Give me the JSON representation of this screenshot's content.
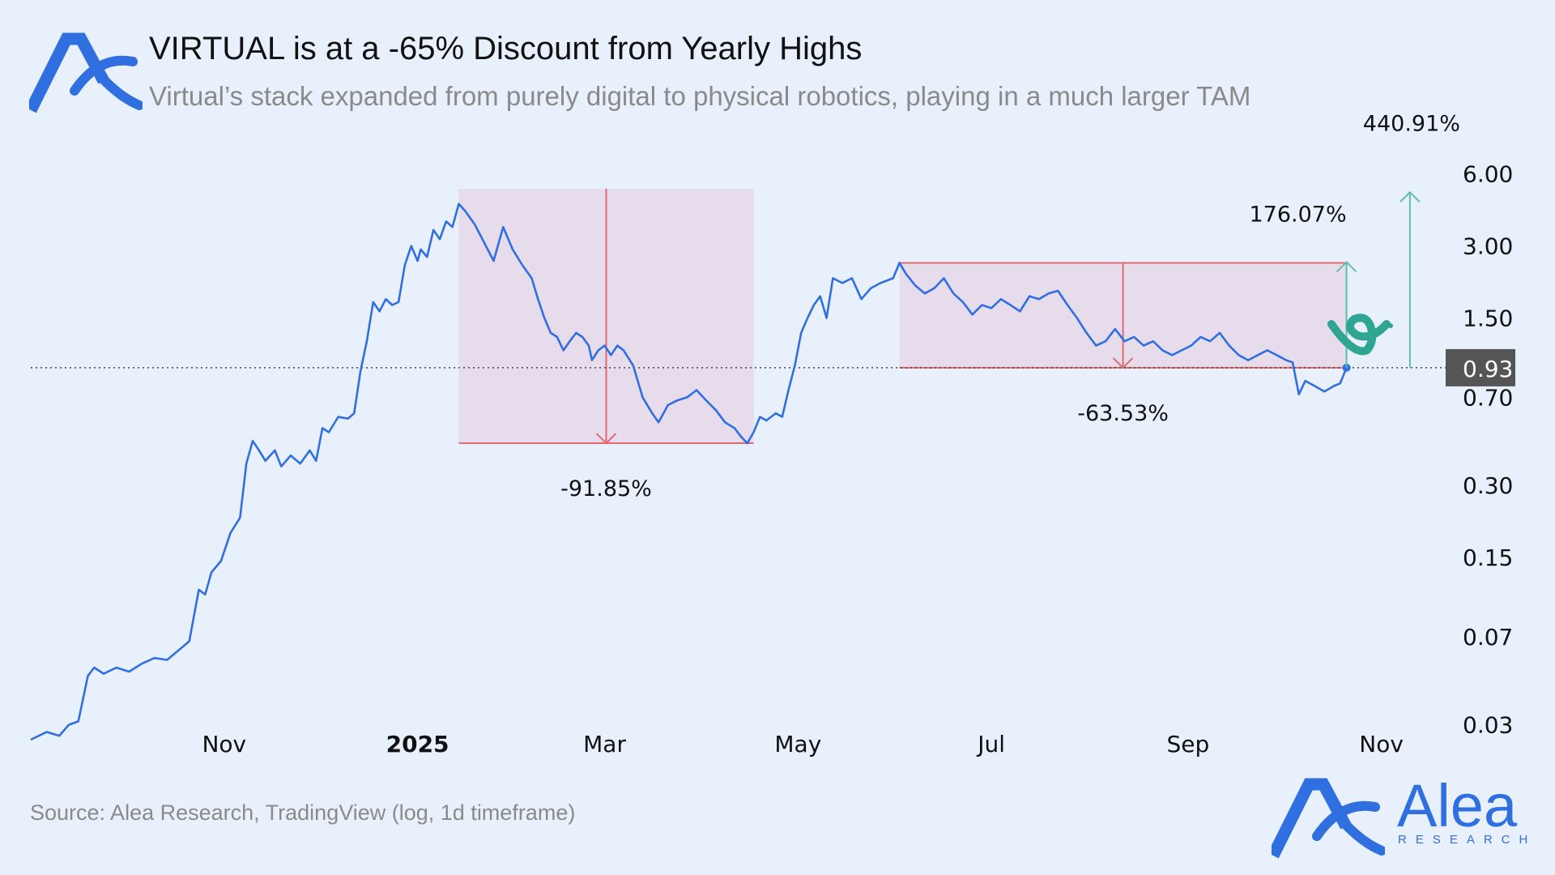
{
  "header": {
    "title": "VIRTUAL is at a -65% Discount from Yearly Highs",
    "subtitle": "Virtual’s stack expanded from purely digital to physical robotics, playing in a much larger TAM"
  },
  "footer": {
    "source": "Source: Alea Research, TradingView (log, 1d timeframe)",
    "brand_name": "Alea",
    "brand_sub": "RESEARCH"
  },
  "colors": {
    "background": "#e8f0fc",
    "line": "#2f6fe0",
    "range_fill": "#e6d9ea",
    "range_stroke": "#e06a72",
    "up_arrow": "#5fbfa6",
    "price_badge": "#555555",
    "brand": "#2f6fe0"
  },
  "chart_data": {
    "type": "line",
    "scale": "log",
    "ylim": [
      0.025,
      7.5
    ],
    "xlim": [
      "2024-09-01",
      "2025-11-20"
    ],
    "yticks": [
      6.0,
      3.0,
      1.5,
      0.7,
      0.3,
      0.15,
      0.07,
      0.03
    ],
    "ytick_labels": [
      "6.00",
      "3.00",
      "1.50",
      "0.70",
      "0.30",
      "0.15",
      "0.07",
      "0.03"
    ],
    "xticks": [
      {
        "date": "2024-11-01",
        "label": "Nov",
        "bold": false
      },
      {
        "date": "2025-01-01",
        "label": "2025",
        "bold": true
      },
      {
        "date": "2025-03-01",
        "label": "Mar",
        "bold": false
      },
      {
        "date": "2025-05-01",
        "label": "May",
        "bold": false
      },
      {
        "date": "2025-07-01",
        "label": "Jul",
        "bold": false
      },
      {
        "date": "2025-09-01",
        "label": "Sep",
        "bold": false
      },
      {
        "date": "2025-11-01",
        "label": "Nov",
        "bold": false
      }
    ],
    "current_price": {
      "value": 0.93,
      "label": "0.93",
      "date": "2025-10-21"
    },
    "series": [
      {
        "values": [
          [
            "2024-09-01",
            0.026
          ],
          [
            "2024-09-06",
            0.028
          ],
          [
            "2024-09-10",
            0.027
          ],
          [
            "2024-09-13",
            0.03
          ],
          [
            "2024-09-16",
            0.031
          ],
          [
            "2024-09-19",
            0.048
          ],
          [
            "2024-09-21",
            0.052
          ],
          [
            "2024-09-24",
            0.049
          ],
          [
            "2024-09-28",
            0.052
          ],
          [
            "2024-10-02",
            0.05
          ],
          [
            "2024-10-06",
            0.054
          ],
          [
            "2024-10-10",
            0.057
          ],
          [
            "2024-10-14",
            0.056
          ],
          [
            "2024-10-18",
            0.062
          ],
          [
            "2024-10-21",
            0.067
          ],
          [
            "2024-10-24",
            0.11
          ],
          [
            "2024-10-26",
            0.105
          ],
          [
            "2024-10-28",
            0.13
          ],
          [
            "2024-10-31",
            0.145
          ],
          [
            "2024-11-03",
            0.19
          ],
          [
            "2024-11-06",
            0.22
          ],
          [
            "2024-11-08",
            0.37
          ],
          [
            "2024-11-10",
            0.46
          ],
          [
            "2024-11-12",
            0.42
          ],
          [
            "2024-11-14",
            0.38
          ],
          [
            "2024-11-17",
            0.42
          ],
          [
            "2024-11-19",
            0.36
          ],
          [
            "2024-11-22",
            0.4
          ],
          [
            "2024-11-25",
            0.37
          ],
          [
            "2024-11-28",
            0.42
          ],
          [
            "2024-11-30",
            0.38
          ],
          [
            "2024-12-02",
            0.52
          ],
          [
            "2024-12-04",
            0.5
          ],
          [
            "2024-12-07",
            0.58
          ],
          [
            "2024-12-10",
            0.57
          ],
          [
            "2024-12-12",
            0.6
          ],
          [
            "2024-12-14",
            0.9
          ],
          [
            "2024-12-16",
            1.2
          ],
          [
            "2024-12-18",
            1.75
          ],
          [
            "2024-12-20",
            1.6
          ],
          [
            "2024-12-22",
            1.8
          ],
          [
            "2024-12-24",
            1.7
          ],
          [
            "2024-12-26",
            1.75
          ],
          [
            "2024-12-28",
            2.5
          ],
          [
            "2024-12-30",
            3.0
          ],
          [
            "2025-01-01",
            2.6
          ],
          [
            "2025-01-02",
            2.9
          ],
          [
            "2025-01-04",
            2.7
          ],
          [
            "2025-01-06",
            3.5
          ],
          [
            "2025-01-08",
            3.2
          ],
          [
            "2025-01-10",
            3.8
          ],
          [
            "2025-01-12",
            3.6
          ],
          [
            "2025-01-14",
            4.5
          ],
          [
            "2025-01-16",
            4.2
          ],
          [
            "2025-01-19",
            3.7
          ],
          [
            "2025-01-22",
            3.1
          ],
          [
            "2025-01-25",
            2.6
          ],
          [
            "2025-01-28",
            3.6
          ],
          [
            "2025-01-31",
            2.9
          ],
          [
            "2025-02-03",
            2.5
          ],
          [
            "2025-02-06",
            2.2
          ],
          [
            "2025-02-08",
            1.8
          ],
          [
            "2025-02-10",
            1.5
          ],
          [
            "2025-02-12",
            1.3
          ],
          [
            "2025-02-14",
            1.25
          ],
          [
            "2025-02-16",
            1.1
          ],
          [
            "2025-02-18",
            1.2
          ],
          [
            "2025-02-20",
            1.3
          ],
          [
            "2025-02-22",
            1.25
          ],
          [
            "2025-02-24",
            1.15
          ],
          [
            "2025-02-25",
            1.0
          ],
          [
            "2025-02-27",
            1.1
          ],
          [
            "2025-03-01",
            1.15
          ],
          [
            "2025-03-03",
            1.05
          ],
          [
            "2025-03-05",
            1.15
          ],
          [
            "2025-03-07",
            1.1
          ],
          [
            "2025-03-10",
            0.95
          ],
          [
            "2025-03-13",
            0.7
          ],
          [
            "2025-03-16",
            0.6
          ],
          [
            "2025-03-18",
            0.55
          ],
          [
            "2025-03-21",
            0.65
          ],
          [
            "2025-03-24",
            0.68
          ],
          [
            "2025-03-27",
            0.7
          ],
          [
            "2025-03-30",
            0.75
          ],
          [
            "2025-04-02",
            0.68
          ],
          [
            "2025-04-05",
            0.62
          ],
          [
            "2025-04-08",
            0.55
          ],
          [
            "2025-04-11",
            0.52
          ],
          [
            "2025-04-13",
            0.48
          ],
          [
            "2025-04-15",
            0.45
          ],
          [
            "2025-04-17",
            0.5
          ],
          [
            "2025-04-19",
            0.58
          ],
          [
            "2025-04-21",
            0.56
          ],
          [
            "2025-04-24",
            0.6
          ],
          [
            "2025-04-26",
            0.58
          ],
          [
            "2025-04-28",
            0.75
          ],
          [
            "2025-04-30",
            0.95
          ],
          [
            "2025-05-02",
            1.3
          ],
          [
            "2025-05-04",
            1.5
          ],
          [
            "2025-05-06",
            1.7
          ],
          [
            "2025-05-08",
            1.85
          ],
          [
            "2025-05-10",
            1.5
          ],
          [
            "2025-05-12",
            2.2
          ],
          [
            "2025-05-15",
            2.1
          ],
          [
            "2025-05-18",
            2.2
          ],
          [
            "2025-05-21",
            1.8
          ],
          [
            "2025-05-24",
            2.0
          ],
          [
            "2025-05-27",
            2.1
          ],
          [
            "2025-05-31",
            2.2
          ],
          [
            "2025-06-02",
            2.55
          ],
          [
            "2025-06-04",
            2.3
          ],
          [
            "2025-06-07",
            2.05
          ],
          [
            "2025-06-10",
            1.9
          ],
          [
            "2025-06-13",
            2.0
          ],
          [
            "2025-06-16",
            2.2
          ],
          [
            "2025-06-19",
            1.9
          ],
          [
            "2025-06-22",
            1.75
          ],
          [
            "2025-06-25",
            1.55
          ],
          [
            "2025-06-28",
            1.7
          ],
          [
            "2025-07-01",
            1.65
          ],
          [
            "2025-07-04",
            1.8
          ],
          [
            "2025-07-07",
            1.7
          ],
          [
            "2025-07-10",
            1.6
          ],
          [
            "2025-07-13",
            1.85
          ],
          [
            "2025-07-16",
            1.8
          ],
          [
            "2025-07-19",
            1.9
          ],
          [
            "2025-07-22",
            1.95
          ],
          [
            "2025-07-25",
            1.7
          ],
          [
            "2025-07-28",
            1.5
          ],
          [
            "2025-07-31",
            1.3
          ],
          [
            "2025-08-03",
            1.15
          ],
          [
            "2025-08-06",
            1.2
          ],
          [
            "2025-08-09",
            1.35
          ],
          [
            "2025-08-12",
            1.2
          ],
          [
            "2025-08-15",
            1.25
          ],
          [
            "2025-08-18",
            1.15
          ],
          [
            "2025-08-21",
            1.2
          ],
          [
            "2025-08-24",
            1.1
          ],
          [
            "2025-08-27",
            1.05
          ],
          [
            "2025-08-30",
            1.1
          ],
          [
            "2025-09-02",
            1.15
          ],
          [
            "2025-09-05",
            1.25
          ],
          [
            "2025-09-08",
            1.2
          ],
          [
            "2025-09-11",
            1.3
          ],
          [
            "2025-09-14",
            1.15
          ],
          [
            "2025-09-17",
            1.05
          ],
          [
            "2025-09-20",
            1.0
          ],
          [
            "2025-09-23",
            1.05
          ],
          [
            "2025-09-26",
            1.1
          ],
          [
            "2025-09-29",
            1.05
          ],
          [
            "2025-10-02",
            1.0
          ],
          [
            "2025-10-04",
            0.98
          ],
          [
            "2025-10-06",
            0.72
          ],
          [
            "2025-10-08",
            0.82
          ],
          [
            "2025-10-11",
            0.78
          ],
          [
            "2025-10-14",
            0.74
          ],
          [
            "2025-10-17",
            0.78
          ],
          [
            "2025-10-19",
            0.8
          ],
          [
            "2025-10-21",
            0.93
          ]
        ]
      }
    ],
    "annotations": [
      {
        "type": "range",
        "x": [
          "2025-01-14",
          "2025-04-17"
        ],
        "y": [
          0.45,
          5.2
        ],
        "label": "-91.85%",
        "direction": "down"
      },
      {
        "type": "range",
        "x": [
          "2025-06-02",
          "2025-10-21"
        ],
        "y": [
          0.93,
          2.55
        ],
        "label": "-63.53%",
        "direction": "down"
      },
      {
        "type": "up_arrow",
        "date": "2025-10-21",
        "from": 0.93,
        "to": 2.57,
        "label": "176.07%"
      },
      {
        "type": "up_arrow",
        "date": "2025-11-10",
        "from": 0.93,
        "to": 5.03,
        "label": "440.91%"
      }
    ]
  }
}
